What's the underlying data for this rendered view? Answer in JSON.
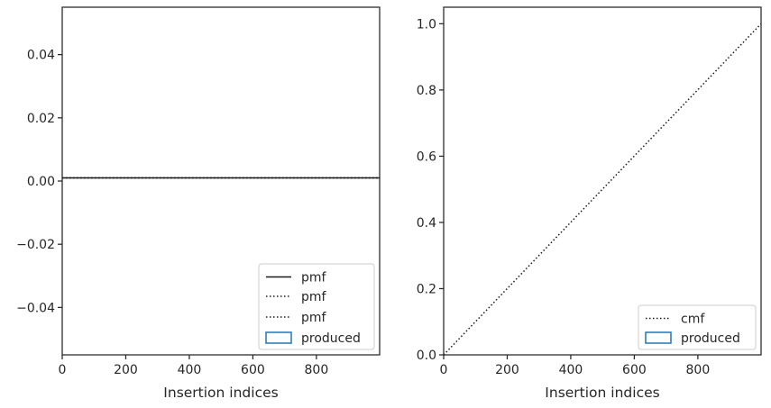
{
  "chart_data": [
    {
      "type": "line",
      "xlabel": "Insertion indices",
      "ylabel": "",
      "xlim": [
        0,
        999
      ],
      "ylim": [
        -0.055,
        0.055
      ],
      "xticks": [
        0,
        200,
        400,
        600,
        800
      ],
      "xtick_labels": [
        "0",
        "200",
        "400",
        "600",
        "800"
      ],
      "yticks": [
        -0.04,
        -0.02,
        0.0,
        0.02,
        0.04
      ],
      "ytick_labels": [
        "−0.04",
        "−0.02",
        "0.00",
        "0.02",
        "0.04"
      ],
      "series": [
        {
          "name": "pmf",
          "style": "solid",
          "color": "#1a1a1a",
          "x": [
            0,
            999
          ],
          "y": [
            0.001,
            0.001
          ]
        },
        {
          "name": "pmf",
          "style": "dotted",
          "color": "#1a1a1a",
          "x": [
            0,
            999
          ],
          "y": [
            0.001,
            0.001
          ]
        },
        {
          "name": "pmf",
          "style": "dotted",
          "color": "#1a1a1a",
          "x": [
            0,
            999
          ],
          "y": [
            0.001,
            0.001
          ]
        },
        {
          "name": "produced",
          "style": "histogram",
          "color": "#1f77b4",
          "x": [],
          "y": []
        }
      ],
      "grid": false,
      "legend_position": "lower-right"
    },
    {
      "type": "line",
      "xlabel": "Insertion indices",
      "ylabel": "",
      "xlim": [
        0,
        999
      ],
      "ylim": [
        0,
        1.05
      ],
      "xticks": [
        0,
        200,
        400,
        600,
        800
      ],
      "xtick_labels": [
        "0",
        "200",
        "400",
        "600",
        "800"
      ],
      "yticks": [
        0.0,
        0.2,
        0.4,
        0.6,
        0.8,
        1.0
      ],
      "ytick_labels": [
        "0.0",
        "0.2",
        "0.4",
        "0.6",
        "0.8",
        "1.0"
      ],
      "series": [
        {
          "name": "cmf",
          "style": "dotted",
          "color": "#1a1a1a",
          "x": [
            0,
            999
          ],
          "y": [
            0,
            1.0
          ]
        },
        {
          "name": "produced",
          "style": "histogram",
          "color": "#1f77b4",
          "x": [],
          "y": []
        }
      ],
      "grid": false,
      "legend_position": "lower-right"
    }
  ]
}
